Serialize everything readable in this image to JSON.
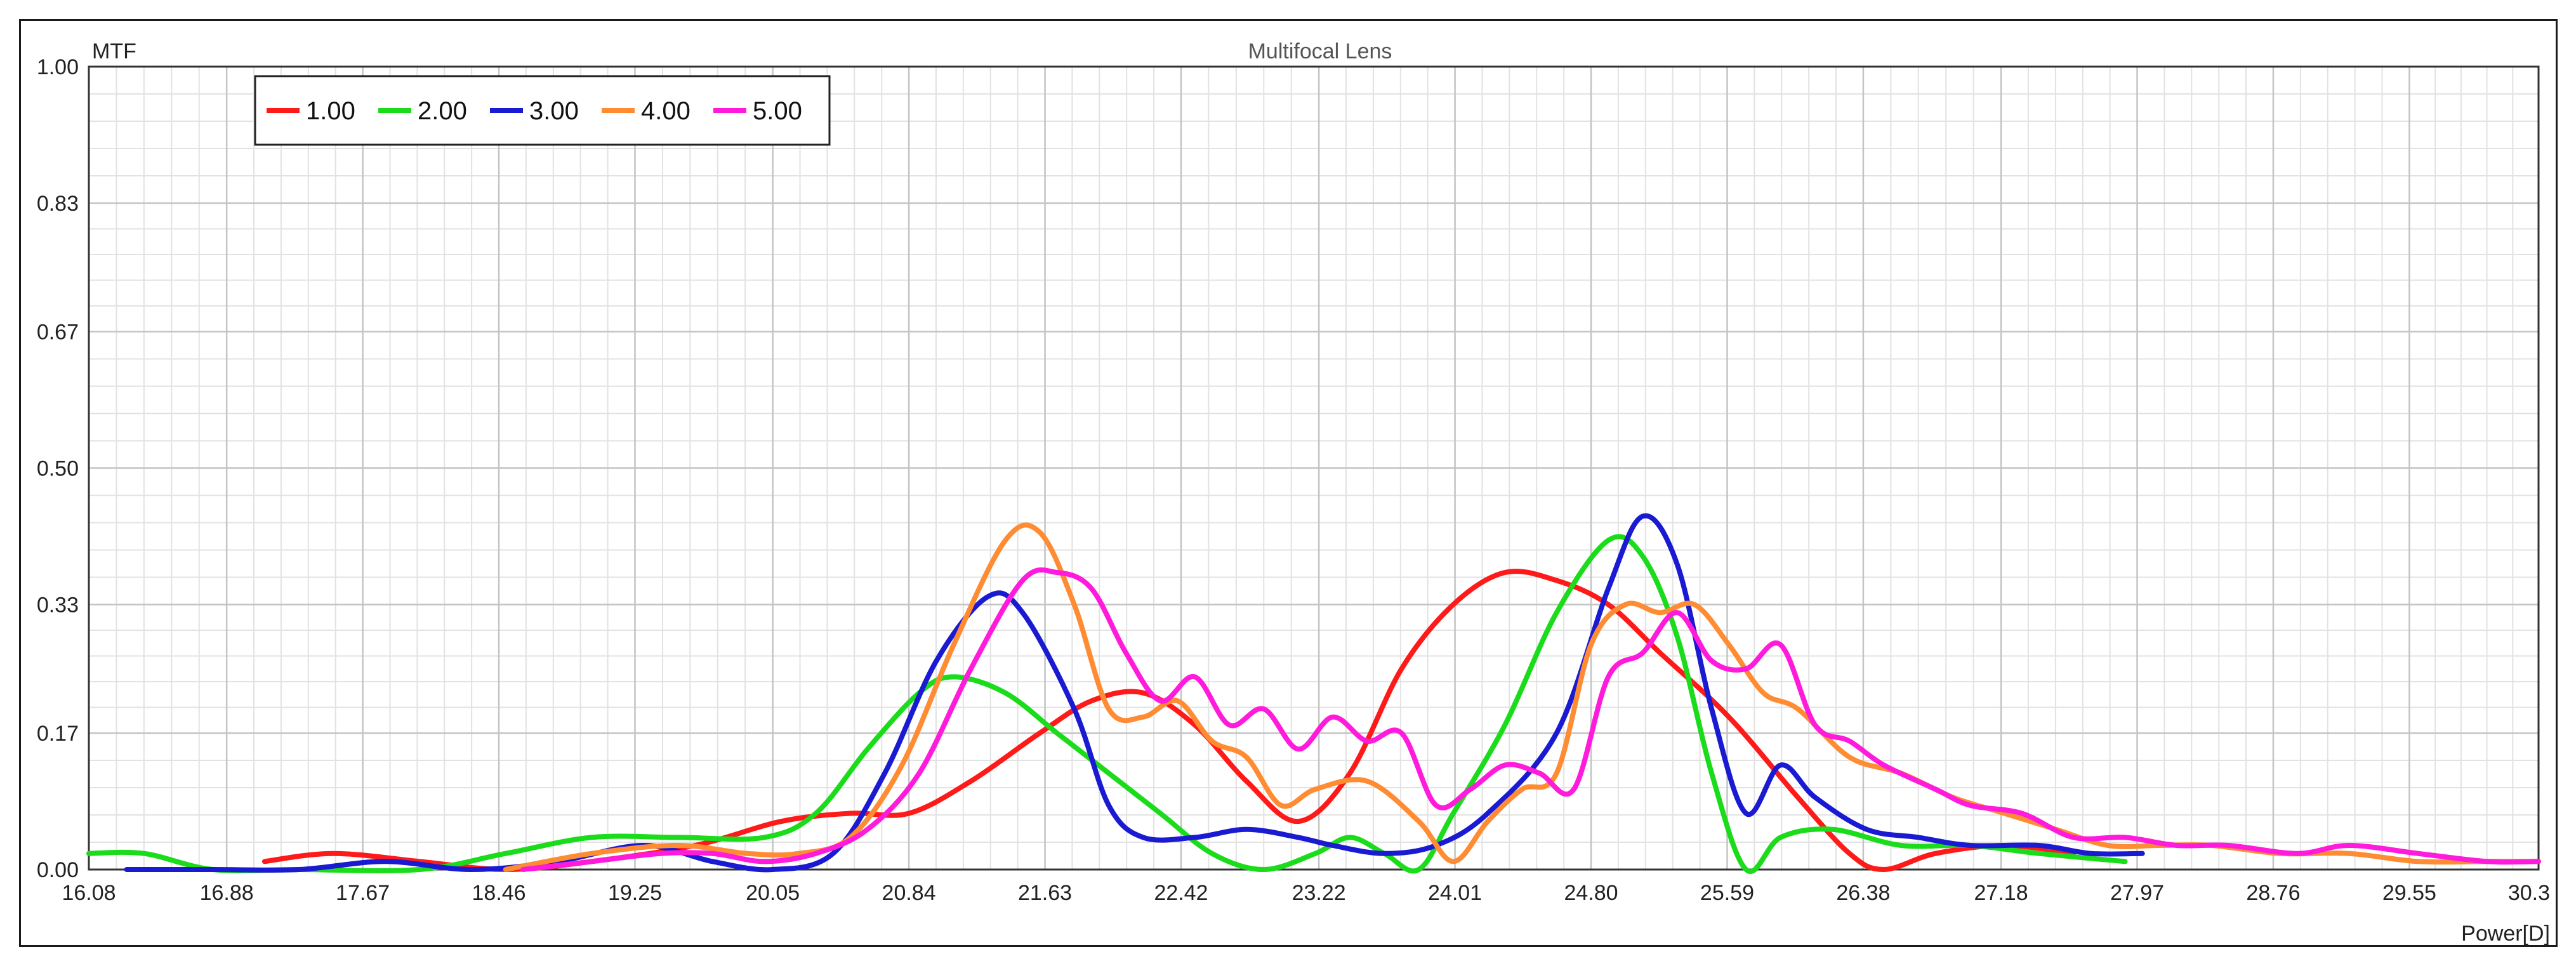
{
  "chart_data": {
    "type": "line",
    "title": "Multifocal Lens",
    "ylabel": "MTF",
    "xlabel": "Power[D]",
    "xlim": [
      16.08,
      30.3
    ],
    "ylim": [
      0,
      1
    ],
    "x_ticks": [
      "16.08",
      "16.88",
      "17.67",
      "18.46",
      "19.25",
      "20.05",
      "20.84",
      "21.63",
      "22.42",
      "23.22",
      "24.01",
      "24.80",
      "25.59",
      "26.38",
      "27.18",
      "27.97",
      "28.76",
      "29.55",
      "30.3"
    ],
    "y_ticks": [
      "0.00",
      "0.17",
      "0.33",
      "0.50",
      "0.67",
      "0.83",
      "1.00"
    ],
    "grid": true,
    "legend_position": "top-left",
    "series": [
      {
        "name": "1.00",
        "color": "#ff1a1a",
        "points": [
          [
            17.1,
            0.01
          ],
          [
            17.5,
            0.02
          ],
          [
            18.0,
            0.01
          ],
          [
            18.5,
            0.0
          ],
          [
            19.0,
            0.01
          ],
          [
            19.6,
            0.03
          ],
          [
            20.1,
            0.06
          ],
          [
            20.5,
            0.07
          ],
          [
            20.84,
            0.07
          ],
          [
            21.2,
            0.11
          ],
          [
            21.6,
            0.17
          ],
          [
            21.9,
            0.21
          ],
          [
            22.2,
            0.22
          ],
          [
            22.5,
            0.18
          ],
          [
            22.8,
            0.11
          ],
          [
            23.1,
            0.06
          ],
          [
            23.4,
            0.12
          ],
          [
            23.7,
            0.25
          ],
          [
            24.0,
            0.33
          ],
          [
            24.3,
            0.37
          ],
          [
            24.6,
            0.36
          ],
          [
            24.9,
            0.33
          ],
          [
            25.2,
            0.27
          ],
          [
            25.6,
            0.19
          ],
          [
            26.0,
            0.09
          ],
          [
            26.3,
            0.02
          ],
          [
            26.5,
            0.0
          ],
          [
            26.8,
            0.02
          ],
          [
            27.2,
            0.03
          ],
          [
            27.6,
            0.02
          ]
        ]
      },
      {
        "name": "2.00",
        "color": "#1adc1a",
        "points": [
          [
            16.08,
            0.02
          ],
          [
            16.4,
            0.02
          ],
          [
            16.8,
            0.0
          ],
          [
            17.3,
            0.0
          ],
          [
            18.0,
            0.0
          ],
          [
            18.5,
            0.02
          ],
          [
            19.0,
            0.04
          ],
          [
            19.5,
            0.04
          ],
          [
            20.0,
            0.04
          ],
          [
            20.3,
            0.07
          ],
          [
            20.6,
            0.15
          ],
          [
            20.9,
            0.22
          ],
          [
            21.1,
            0.24
          ],
          [
            21.4,
            0.22
          ],
          [
            21.7,
            0.17
          ],
          [
            22.0,
            0.12
          ],
          [
            22.3,
            0.07
          ],
          [
            22.6,
            0.02
          ],
          [
            22.9,
            0.0
          ],
          [
            23.2,
            0.02
          ],
          [
            23.4,
            0.04
          ],
          [
            23.6,
            0.02
          ],
          [
            23.8,
            0.0
          ],
          [
            24.0,
            0.07
          ],
          [
            24.3,
            0.18
          ],
          [
            24.6,
            0.32
          ],
          [
            24.9,
            0.41
          ],
          [
            25.1,
            0.39
          ],
          [
            25.3,
            0.29
          ],
          [
            25.5,
            0.12
          ],
          [
            25.7,
            0.0
          ],
          [
            25.9,
            0.04
          ],
          [
            26.2,
            0.05
          ],
          [
            26.6,
            0.03
          ],
          [
            27.0,
            0.03
          ],
          [
            27.4,
            0.02
          ],
          [
            27.9,
            0.01
          ]
        ]
      },
      {
        "name": "3.00",
        "color": "#1a1ad2",
        "points": [
          [
            16.3,
            0.0
          ],
          [
            16.8,
            0.0
          ],
          [
            17.3,
            0.0
          ],
          [
            17.8,
            0.01
          ],
          [
            18.3,
            0.0
          ],
          [
            18.8,
            0.01
          ],
          [
            19.3,
            0.03
          ],
          [
            19.7,
            0.01
          ],
          [
            20.05,
            0.0
          ],
          [
            20.4,
            0.02
          ],
          [
            20.7,
            0.12
          ],
          [
            21.0,
            0.26
          ],
          [
            21.3,
            0.34
          ],
          [
            21.5,
            0.32
          ],
          [
            21.8,
            0.2
          ],
          [
            22.0,
            0.08
          ],
          [
            22.2,
            0.04
          ],
          [
            22.5,
            0.04
          ],
          [
            22.8,
            0.05
          ],
          [
            23.1,
            0.04
          ],
          [
            23.3,
            0.03
          ],
          [
            23.6,
            0.02
          ],
          [
            23.9,
            0.03
          ],
          [
            24.2,
            0.07
          ],
          [
            24.6,
            0.17
          ],
          [
            24.9,
            0.35
          ],
          [
            25.1,
            0.44
          ],
          [
            25.3,
            0.38
          ],
          [
            25.5,
            0.2
          ],
          [
            25.7,
            0.07
          ],
          [
            25.9,
            0.13
          ],
          [
            26.1,
            0.09
          ],
          [
            26.4,
            0.05
          ],
          [
            26.7,
            0.04
          ],
          [
            27.0,
            0.03
          ],
          [
            27.4,
            0.03
          ],
          [
            27.7,
            0.02
          ],
          [
            28.0,
            0.02
          ]
        ]
      },
      {
        "name": "4.00",
        "color": "#ff8c33",
        "points": [
          [
            18.5,
            0.0
          ],
          [
            19.0,
            0.02
          ],
          [
            19.5,
            0.03
          ],
          [
            19.9,
            0.02
          ],
          [
            20.2,
            0.02
          ],
          [
            20.5,
            0.04
          ],
          [
            20.8,
            0.13
          ],
          [
            21.1,
            0.28
          ],
          [
            21.4,
            0.41
          ],
          [
            21.6,
            0.42
          ],
          [
            21.8,
            0.33
          ],
          [
            22.0,
            0.2
          ],
          [
            22.2,
            0.19
          ],
          [
            22.4,
            0.21
          ],
          [
            22.6,
            0.16
          ],
          [
            22.8,
            0.14
          ],
          [
            23.0,
            0.08
          ],
          [
            23.2,
            0.1
          ],
          [
            23.5,
            0.11
          ],
          [
            23.8,
            0.06
          ],
          [
            24.0,
            0.01
          ],
          [
            24.2,
            0.06
          ],
          [
            24.4,
            0.1
          ],
          [
            24.6,
            0.12
          ],
          [
            24.8,
            0.28
          ],
          [
            25.0,
            0.33
          ],
          [
            25.2,
            0.32
          ],
          [
            25.4,
            0.33
          ],
          [
            25.6,
            0.28
          ],
          [
            25.8,
            0.22
          ],
          [
            26.0,
            0.2
          ],
          [
            26.3,
            0.14
          ],
          [
            26.6,
            0.12
          ],
          [
            26.9,
            0.09
          ],
          [
            27.2,
            0.07
          ],
          [
            27.5,
            0.05
          ],
          [
            27.8,
            0.03
          ],
          [
            28.1,
            0.03
          ],
          [
            28.4,
            0.03
          ],
          [
            28.8,
            0.02
          ],
          [
            29.2,
            0.02
          ],
          [
            29.6,
            0.01
          ],
          [
            30.0,
            0.01
          ],
          [
            30.3,
            0.01
          ]
        ]
      },
      {
        "name": "5.00",
        "color": "#ff1adc",
        "points": [
          [
            18.6,
            0.0
          ],
          [
            19.0,
            0.01
          ],
          [
            19.4,
            0.02
          ],
          [
            19.7,
            0.02
          ],
          [
            20.0,
            0.01
          ],
          [
            20.3,
            0.02
          ],
          [
            20.6,
            0.05
          ],
          [
            20.9,
            0.12
          ],
          [
            21.2,
            0.25
          ],
          [
            21.5,
            0.36
          ],
          [
            21.7,
            0.37
          ],
          [
            21.9,
            0.35
          ],
          [
            22.1,
            0.27
          ],
          [
            22.3,
            0.21
          ],
          [
            22.5,
            0.24
          ],
          [
            22.7,
            0.18
          ],
          [
            22.9,
            0.2
          ],
          [
            23.1,
            0.15
          ],
          [
            23.3,
            0.19
          ],
          [
            23.5,
            0.16
          ],
          [
            23.7,
            0.17
          ],
          [
            23.9,
            0.08
          ],
          [
            24.1,
            0.1
          ],
          [
            24.3,
            0.13
          ],
          [
            24.5,
            0.12
          ],
          [
            24.7,
            0.1
          ],
          [
            24.9,
            0.24
          ],
          [
            25.1,
            0.27
          ],
          [
            25.3,
            0.32
          ],
          [
            25.5,
            0.26
          ],
          [
            25.7,
            0.25
          ],
          [
            25.9,
            0.28
          ],
          [
            26.1,
            0.18
          ],
          [
            26.3,
            0.16
          ],
          [
            26.5,
            0.13
          ],
          [
            26.8,
            0.1
          ],
          [
            27.0,
            0.08
          ],
          [
            27.3,
            0.07
          ],
          [
            27.6,
            0.04
          ],
          [
            27.9,
            0.04
          ],
          [
            28.2,
            0.03
          ],
          [
            28.5,
            0.03
          ],
          [
            28.9,
            0.02
          ],
          [
            29.2,
            0.03
          ],
          [
            29.6,
            0.02
          ],
          [
            30.0,
            0.01
          ],
          [
            30.3,
            0.01
          ]
        ]
      }
    ]
  }
}
